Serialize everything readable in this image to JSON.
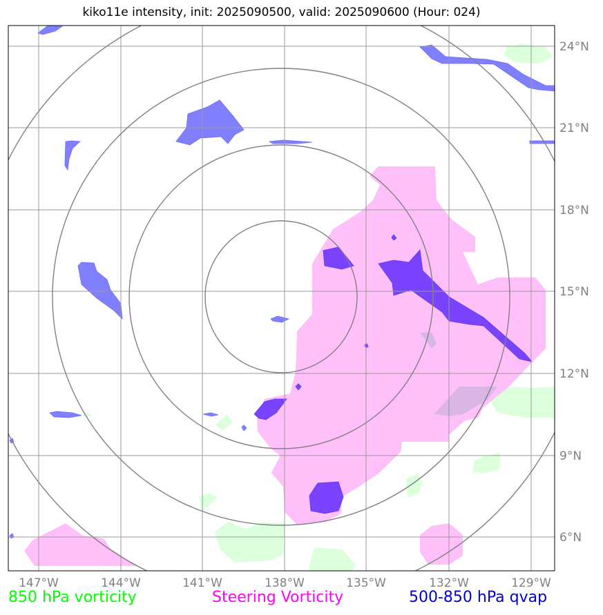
{
  "title": "kiko11e intensity, init: 2025090500, valid: 2025090600 (Hour: 024)",
  "x_ticks": [
    "147°W",
    "144°W",
    "141°W",
    "138°W",
    "135°W",
    "132°W",
    "129°W"
  ],
  "y_ticks": [
    "24°N",
    "21°N",
    "18°N",
    "15°N",
    "12°N",
    "9°N",
    "6°N"
  ],
  "legend": {
    "left": "850 hPa vorticity",
    "middle": "Steering Vorticity",
    "right": "500-850 hPa qvap"
  },
  "colors": {
    "vorticity_850": "#00ff00",
    "steering_vorticity": "#ff00ff",
    "qvap": "#0000cc",
    "grid": "#999999",
    "range_rings": "#808080",
    "qvap_fill": "#8080ff",
    "qvap_fill_dense": "#7a44ff",
    "steering_fill": "#ffbff9",
    "vorticity_fill": "#dcffdc"
  },
  "map": {
    "lon_range": [
      -149,
      -128.9
    ],
    "lat_range": [
      4.8,
      24.8
    ],
    "center": {
      "lon": -138,
      "lat": 14.9
    }
  }
}
